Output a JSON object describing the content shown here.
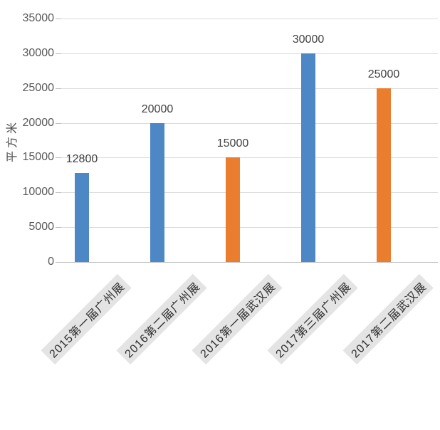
{
  "chart_data": {
    "type": "bar",
    "title": "",
    "xlabel": "",
    "ylabel": "平方米",
    "ylim": [
      0,
      35000
    ],
    "ytick_step": 5000,
    "yticks": [
      "0",
      "5000",
      "10000",
      "15000",
      "20000",
      "25000",
      "30000",
      "35000"
    ],
    "grid": "horizontal gridlines on, light gray",
    "legend": "none",
    "categories": [
      "2015第一届广州展",
      "2016第二届广州展",
      "2016第一届武汉展",
      "2017第三届广州展",
      "2017第二届武汉展"
    ],
    "values": [
      12800,
      20000,
      15000,
      30000,
      25000
    ],
    "value_labels": [
      "12800",
      "20000",
      "15000",
      "30000",
      "25000"
    ],
    "bar_colors": [
      "blue",
      "blue",
      "orange",
      "blue",
      "orange"
    ],
    "palette": {
      "blue": "#4D87C5",
      "orange": "#EB7D2F",
      "gridline": "#DBDBDB",
      "axis_line": "#BFBFBF",
      "tick_text": "#595959",
      "value_text": "#404040",
      "category_text": "#2E2E2E",
      "category_bg": "#E4E4E4"
    }
  }
}
